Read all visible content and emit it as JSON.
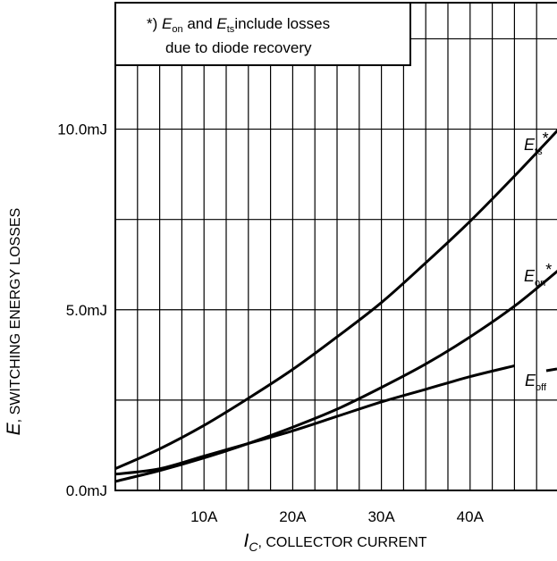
{
  "chart_data": {
    "type": "line",
    "xlabel_main": "I",
    "xlabel_sub": "C",
    "xlabel_rest": ", COLLECTOR CURRENT",
    "ylabel_main": "E",
    "ylabel_rest": ", SWITCHING ENERGY LOSSES",
    "xlim": [
      0,
      50
    ],
    "ylim": [
      0,
      13.5
    ],
    "x_ticks": [
      {
        "value": 10,
        "label": "10A"
      },
      {
        "value": 20,
        "label": "20A"
      },
      {
        "value": 30,
        "label": "30A"
      },
      {
        "value": 40,
        "label": "40A"
      }
    ],
    "y_ticks": [
      {
        "value": 0,
        "label": "0.0mJ"
      },
      {
        "value": 5,
        "label": "5.0mJ"
      },
      {
        "value": 10,
        "label": "10.0mJ"
      }
    ],
    "x_grid": [
      0,
      2.5,
      5,
      7.5,
      10,
      12.5,
      15,
      17.5,
      20,
      22.5,
      25,
      27.5,
      30,
      32.5,
      35,
      37.5,
      40,
      42.5,
      45,
      47.5,
      50
    ],
    "y_grid": [
      2.5,
      5,
      7.5,
      10,
      12.5
    ],
    "annotation": {
      "line1_prefix": "*) ",
      "line1_e1": "E",
      "line1_e1_sub": "on",
      "line1_mid": " and ",
      "line1_e2": "E",
      "line1_e2_sub": "ts",
      "line1_suffix": "include losses",
      "line2": "due to diode recovery"
    },
    "series": [
      {
        "name": "E_ts*",
        "label_main": "E",
        "label_sub": "ts",
        "label_suffix": "*",
        "x": [
          0,
          5,
          10,
          15,
          20,
          25,
          30,
          35,
          40,
          45,
          50
        ],
        "y": [
          0.6,
          1.15,
          1.8,
          2.55,
          3.35,
          4.25,
          5.2,
          6.3,
          7.45,
          8.7,
          10.0
        ]
      },
      {
        "name": "E_on*",
        "label_main": "E",
        "label_sub": "on",
        "label_suffix": "*",
        "x": [
          0,
          5,
          10,
          15,
          20,
          25,
          30,
          35,
          40,
          45,
          50
        ],
        "y": [
          0.25,
          0.55,
          0.9,
          1.3,
          1.75,
          2.25,
          2.85,
          3.5,
          4.25,
          5.1,
          6.1
        ]
      },
      {
        "name": "E_off",
        "label_main": "E",
        "label_sub": "off",
        "label_suffix": "",
        "x": [
          0,
          5,
          10,
          15,
          20,
          25,
          30,
          35,
          40,
          45
        ],
        "y": [
          0.45,
          0.6,
          0.95,
          1.3,
          1.65,
          2.05,
          2.45,
          2.8,
          3.15,
          3.45
        ]
      }
    ]
  }
}
